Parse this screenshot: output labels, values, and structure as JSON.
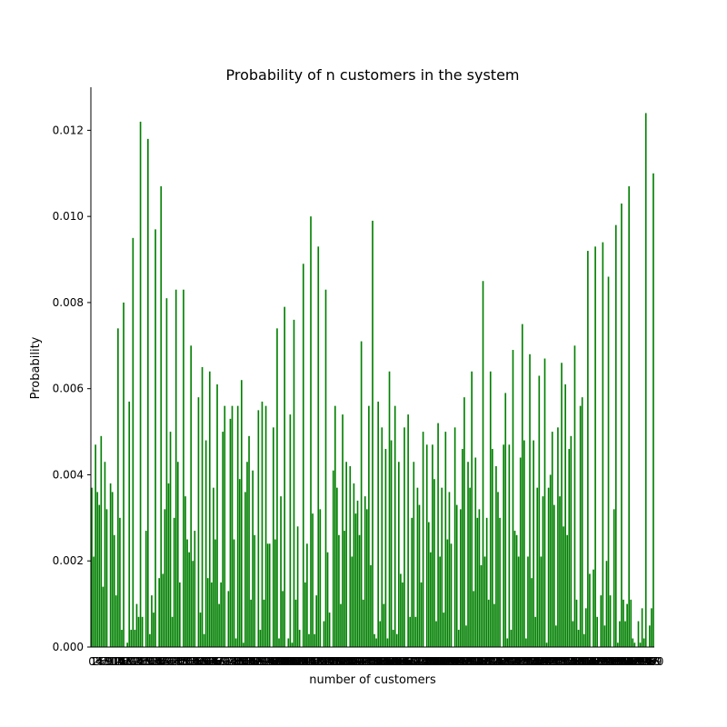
{
  "chart_data": {
    "type": "bar",
    "title": "Probability of n customers in the system",
    "xlabel": "number of customers",
    "ylabel": "Probability",
    "color": "green",
    "ylim": [
      0,
      0.013
    ],
    "yticks": [
      {
        "value": 0,
        "label": "0.000"
      },
      {
        "value": 0.002,
        "label": "0.002"
      },
      {
        "value": 0.004,
        "label": "0.004"
      },
      {
        "value": 0.006,
        "label": "0.006"
      },
      {
        "value": 0.008,
        "label": "0.008"
      },
      {
        "value": 0.01,
        "label": "0.010"
      },
      {
        "value": 0.012,
        "label": "0.012"
      }
    ],
    "categories": [
      0,
      1,
      2,
      3,
      4,
      5,
      6,
      7,
      8,
      9,
      10,
      11,
      12,
      13,
      14,
      15,
      16,
      17,
      18,
      19,
      20,
      21,
      22,
      23,
      24,
      25,
      26,
      27,
      28,
      29,
      30,
      31,
      32,
      33,
      34,
      35,
      36,
      37,
      38,
      39,
      40,
      41,
      42,
      43,
      44,
      45,
      46,
      47,
      48,
      49,
      50,
      51,
      52,
      53,
      54,
      55,
      56,
      57,
      58,
      59,
      60,
      61,
      62,
      63,
      64,
      65,
      66,
      67,
      68,
      69,
      70,
      71,
      72,
      73,
      74,
      75,
      76,
      77,
      78,
      79,
      80,
      81,
      82,
      83,
      84,
      85,
      86,
      87,
      88,
      89,
      90,
      91,
      92,
      93,
      94,
      95,
      96,
      97,
      98,
      99,
      100,
      101,
      102,
      103,
      104,
      105,
      106,
      107,
      108,
      109,
      110,
      111,
      112,
      113,
      114,
      115,
      116,
      117,
      118,
      119,
      120,
      121,
      122,
      123,
      124,
      125,
      126,
      127,
      128,
      129,
      130,
      131,
      132,
      133,
      134,
      135,
      136,
      137,
      138,
      139,
      140,
      141,
      142,
      143,
      144,
      145,
      146,
      147,
      148,
      149,
      150,
      151,
      152,
      153,
      154,
      155,
      156,
      157,
      158,
      159,
      160,
      161,
      162,
      163,
      164,
      165,
      166,
      167,
      168,
      169,
      170,
      171,
      172,
      173,
      174,
      175,
      176,
      177,
      178,
      179,
      180,
      181,
      182,
      183,
      184,
      185,
      186,
      187,
      188,
      189,
      190,
      191,
      192,
      193,
      194,
      195,
      196,
      197,
      198,
      199,
      200,
      201,
      202,
      203,
      204,
      205,
      206,
      207,
      208,
      209,
      210,
      211,
      212,
      213,
      214,
      215,
      216,
      217,
      218,
      219,
      220,
      221,
      222,
      223,
      224,
      225,
      226,
      227,
      228,
      229,
      230,
      231,
      232,
      233,
      234,
      235,
      236,
      237,
      238,
      239,
      240,
      241,
      242,
      243,
      244,
      245,
      246,
      247,
      248,
      249,
      250,
      251,
      252,
      253,
      254,
      255,
      256,
      257,
      258,
      259,
      260,
      261,
      262,
      263,
      264,
      265,
      266,
      267,
      268,
      269,
      270,
      271,
      272,
      273,
      274,
      275,
      276,
      277,
      278,
      279,
      280,
      281,
      282,
      283,
      284,
      285,
      286,
      287,
      288,
      289,
      290,
      291,
      292,
      293,
      294,
      295,
      296,
      297,
      298,
      299,
      300
    ],
    "values": [
      0.0037,
      0.0021,
      0.0047,
      0.0036,
      0.0033,
      0.0049,
      0.0014,
      0.0043,
      0.0032,
      0.0,
      0.0038,
      0.0036,
      0.0026,
      0.0012,
      0.0074,
      0.003,
      0.0004,
      0.008,
      0.0,
      0.0001,
      0.0057,
      0.0004,
      0.0095,
      0.0004,
      0.001,
      0.0007,
      0.0122,
      0.0007,
      0.0,
      0.0027,
      0.0118,
      0.0003,
      0.0012,
      0.0008,
      0.0097,
      0.0,
      0.0016,
      0.0107,
      0.0017,
      0.0032,
      0.0081,
      0.0038,
      0.005,
      0.0007,
      0.003,
      0.0083,
      0.0043,
      0.0015,
      0.0,
      0.0083,
      0.0035,
      0.0025,
      0.0022,
      0.007,
      0.002,
      0.0027,
      0.0,
      0.0058,
      0.0008,
      0.0065,
      0.0003,
      0.0048,
      0.0016,
      0.0064,
      0.0015,
      0.0037,
      0.0025,
      0.0061,
      0.001,
      0.0015,
      0.005,
      0.0056,
      0.0,
      0.0013,
      0.0053,
      0.0056,
      0.0025,
      0.0002,
      0.0056,
      0.0039,
      0.0062,
      0.0001,
      0.0036,
      0.0043,
      0.0049,
      0.0011,
      0.0041,
      0.0026,
      0.0,
      0.0055,
      0.0004,
      0.0057,
      0.0011,
      0.0056,
      0.0024,
      0.0024,
      0.0,
      0.0051,
      0.0025,
      0.0074,
      0.0002,
      0.0035,
      0.0013,
      0.0079,
      0.0,
      0.0002,
      0.0054,
      0.0001,
      0.0076,
      0.0011,
      0.0028,
      0.0004,
      0.0,
      0.0089,
      0.0015,
      0.0024,
      0.0003,
      0.01,
      0.0031,
      0.0003,
      0.0012,
      0.0093,
      0.0032,
      0.0,
      0.0006,
      0.0083,
      0.0022,
      0.0008,
      0.0,
      0.0041,
      0.0056,
      0.0037,
      0.0026,
      0.001,
      0.0054,
      0.0027,
      0.0043,
      0.0,
      0.0042,
      0.0021,
      0.0038,
      0.0031,
      0.0034,
      0.0026,
      0.0071,
      0.0011,
      0.0035,
      0.0032,
      0.0056,
      0.0019,
      0.0099,
      0.0003,
      0.0002,
      0.0057,
      0.0006,
      0.0051,
      0.001,
      0.0046,
      0.0002,
      0.0064,
      0.0048,
      0.0004,
      0.0056,
      0.0003,
      0.0043,
      0.0017,
      0.0015,
      0.0051,
      0.0,
      0.0054,
      0.0007,
      0.003,
      0.0043,
      0.0007,
      0.0037,
      0.0033,
      0.0015,
      0.005,
      0.0,
      0.0047,
      0.0029,
      0.0022,
      0.0047,
      0.0039,
      0.0006,
      0.0052,
      0.0021,
      0.0037,
      0.0008,
      0.005,
      0.0025,
      0.0036,
      0.0024,
      0.0,
      0.0051,
      0.0033,
      0.0004,
      0.0032,
      0.0046,
      0.0058,
      0.0005,
      0.0043,
      0.0037,
      0.0064,
      0.0013,
      0.0044,
      0.003,
      0.0032,
      0.0019,
      0.0085,
      0.0021,
      0.003,
      0.0011,
      0.0064,
      0.0046,
      0.001,
      0.0042,
      0.0036,
      0.003,
      0.0,
      0.0047,
      0.0059,
      0.0002,
      0.0047,
      0.0004,
      0.0069,
      0.0027,
      0.0026,
      0.0021,
      0.0044,
      0.0075,
      0.0048,
      0.0002,
      0.0021,
      0.0068,
      0.0016,
      0.0048,
      0.0007,
      0.0037,
      0.0063,
      0.0021,
      0.0035,
      0.0067,
      0.0001,
      0.0037,
      0.004,
      0.005,
      0.0033,
      0.0005,
      0.0051,
      0.0035,
      0.0066,
      0.0028,
      0.0061,
      0.0026,
      0.0046,
      0.0049,
      0.0006,
      0.007,
      0.0011,
      0.0004,
      0.0056,
      0.0058,
      0.0003,
      0.0009,
      0.0092,
      0.0017,
      0.0,
      0.0018,
      0.0093,
      0.0007,
      0.0,
      0.0012,
      0.0094,
      0.0005,
      0.002,
      0.0086,
      0.0012,
      0.0,
      0.0032,
      0.0098,
      0.0001,
      0.0006,
      0.0103,
      0.0011,
      0.0006,
      0.001,
      0.0107,
      0.0011,
      0.0002,
      0.0001,
      0.0,
      0.0006,
      0.0001,
      0.0009,
      0.0002,
      0.0124,
      0.0,
      0.0005,
      0.0009,
      0.011
    ]
  }
}
